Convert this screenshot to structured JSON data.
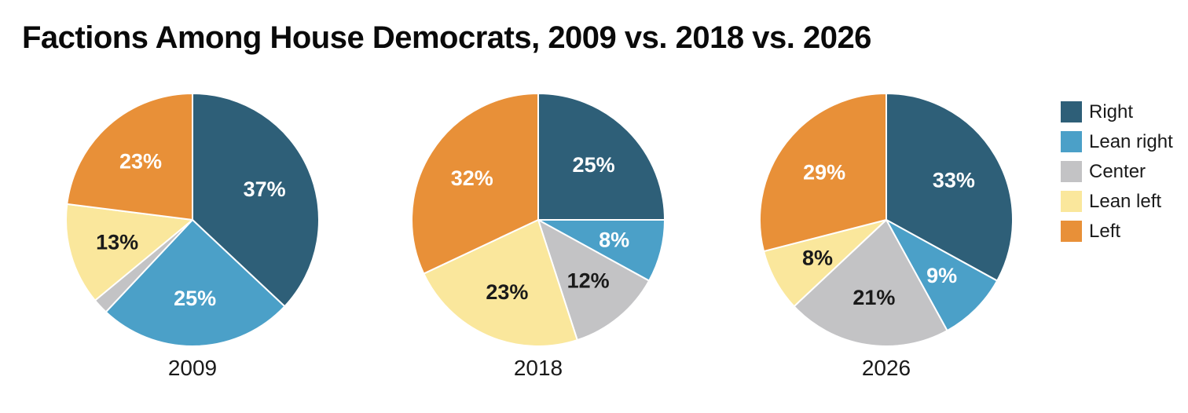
{
  "page": {
    "background": "#ffffff"
  },
  "chart_data": {
    "type": "pie",
    "title": "Factions Among House Democrats, 2009 vs. 2018 vs. 2026",
    "legend_position": "right",
    "categories": [
      "Right",
      "Lean right",
      "Center",
      "Lean left",
      "Left"
    ],
    "colors": [
      "#2E5F78",
      "#4BA0C8",
      "#C3C3C5",
      "#FAE79C",
      "#E89038"
    ],
    "label_text_colors": [
      "#FFFFFF",
      "#FFFFFF",
      "#1A1A1A",
      "#1A1A1A",
      "#FFFFFF"
    ],
    "slice_border_color": "#FFFFFF",
    "pies": [
      {
        "label": "2009",
        "values": [
          37,
          25,
          2,
          13,
          23
        ],
        "slice_labels": [
          "37%",
          "25%",
          "",
          "13%",
          "23%"
        ]
      },
      {
        "label": "2018",
        "values": [
          25,
          8,
          12,
          23,
          32
        ],
        "slice_labels": [
          "25%",
          "8%",
          "12%",
          "23%",
          "32%"
        ]
      },
      {
        "label": "2026",
        "values": [
          33,
          9,
          21,
          8,
          29
        ],
        "slice_labels": [
          "33%",
          "9%",
          "21%",
          "8%",
          "29%"
        ]
      }
    ]
  }
}
